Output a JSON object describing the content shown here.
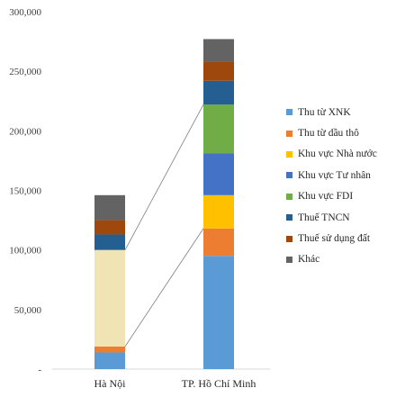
{
  "chart_data": {
    "type": "bar",
    "stacked": true,
    "categories": [
      "Hà Nội",
      "TP. Hồ Chí Minh"
    ],
    "ylim": [
      0,
      300000
    ],
    "yticks": [
      0,
      50000,
      100000,
      150000,
      200000,
      250000,
      300000
    ],
    "ytick_labels": [
      "-",
      "50,000",
      "100,000",
      "150,000",
      "200,000",
      "250,000",
      "300,000"
    ],
    "grid": false,
    "legend_position": "right",
    "series": [
      {
        "name": "Thu từ XNK",
        "color": "#5b9bd5",
        "values": [
          14000,
          95000
        ]
      },
      {
        "name": "Thu từ dầu thô",
        "color": "#ed7d31",
        "values": [
          5000,
          23000
        ]
      },
      {
        "name": "Khu vực Nhà nước",
        "color": "#ffc000",
        "values": [
          null,
          28000
        ]
      },
      {
        "name": "Khu vực Tư nhân",
        "color": "#4472c4",
        "values": [
          null,
          35000
        ]
      },
      {
        "name": "Khu vực FDI",
        "color": "#70ad47",
        "values": [
          null,
          41000
        ]
      },
      {
        "name": "Thuế TNCN",
        "color": "#255e91",
        "values": [
          13000,
          20000
        ]
      },
      {
        "name": "Thuế sử dụng đất",
        "color": "#9e480e",
        "values": [
          12000,
          16000
        ]
      },
      {
        "name": "Khác",
        "color": "#636363",
        "values": [
          21000,
          19000
        ]
      }
    ],
    "aggregate_segment": {
      "category": "Hà Nội",
      "color": "#f0e4b4",
      "value": 81000
    },
    "connector_color": "#7f7f7f"
  }
}
